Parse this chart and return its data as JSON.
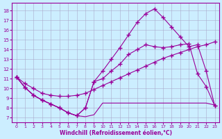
{
  "background_color": "#cceeff",
  "line_color": "#990099",
  "grid_color": "#aaaacc",
  "xlabel": "Windchill (Refroidissement éolien,°C)",
  "ylabel_ticks": [
    7,
    8,
    9,
    10,
    11,
    12,
    13,
    14,
    15,
    16,
    17,
    18
  ],
  "xlabel_ticks": [
    0,
    1,
    2,
    3,
    4,
    5,
    6,
    7,
    8,
    9,
    10,
    11,
    12,
    13,
    14,
    15,
    16,
    17,
    18,
    19,
    20,
    21,
    22,
    23
  ],
  "ylim": [
    6.5,
    18.8
  ],
  "xlim": [
    -0.5,
    23.5
  ],
  "series": [
    {
      "x": [
        0,
        1,
        2,
        3,
        4,
        5,
        6,
        7,
        8,
        9,
        10,
        11,
        12,
        13,
        14,
        15,
        16,
        17,
        18,
        19,
        20,
        21,
        22,
        23
      ],
      "y": [
        11.2,
        10.1,
        9.3,
        8.8,
        8.4,
        8.0,
        7.5,
        7.2,
        8.0,
        10.7,
        11.8,
        13.0,
        14.2,
        15.5,
        16.8,
        17.7,
        18.2,
        17.3,
        16.3,
        15.3,
        14.3,
        14.5,
        11.8,
        8.2
      ],
      "marker": true,
      "linestyle": "-"
    },
    {
      "x": [
        0,
        1,
        2,
        3,
        4,
        5,
        6,
        7,
        8,
        9,
        10,
        11,
        12,
        13,
        14,
        15,
        16,
        17,
        18,
        19,
        20,
        21,
        22,
        23
      ],
      "y": [
        11.2,
        10.1,
        9.3,
        8.8,
        8.4,
        8.0,
        7.5,
        7.2,
        8.0,
        10.7,
        11.0,
        11.8,
        12.5,
        13.5,
        14.0,
        14.5,
        14.3,
        14.2,
        14.3,
        14.5,
        14.6,
        11.5,
        10.2,
        8.2
      ],
      "marker": true,
      "linestyle": "-"
    },
    {
      "x": [
        0,
        1,
        2,
        3,
        4,
        5,
        6,
        7,
        8,
        9,
        10,
        11,
        12,
        13,
        14,
        15,
        16,
        17,
        18,
        19,
        20,
        21,
        22,
        23
      ],
      "y": [
        11.2,
        10.5,
        10.0,
        9.5,
        9.3,
        9.2,
        9.2,
        9.3,
        9.5,
        9.9,
        10.3,
        10.7,
        11.1,
        11.5,
        11.9,
        12.3,
        12.7,
        13.1,
        13.4,
        13.7,
        14.0,
        14.3,
        14.5,
        14.8
      ],
      "marker": true,
      "linestyle": "-"
    },
    {
      "x": [
        0,
        1,
        2,
        3,
        4,
        5,
        6,
        7,
        8,
        9,
        10,
        11,
        12,
        13,
        14,
        15,
        16,
        17,
        18,
        19,
        20,
        21,
        22,
        23
      ],
      "y": [
        11.2,
        10.1,
        9.3,
        8.8,
        8.4,
        8.0,
        7.5,
        7.2,
        7.1,
        7.3,
        8.5,
        8.5,
        8.5,
        8.5,
        8.5,
        8.5,
        8.5,
        8.5,
        8.5,
        8.5,
        8.5,
        8.5,
        8.5,
        8.3
      ],
      "marker": false,
      "linestyle": "-"
    }
  ]
}
